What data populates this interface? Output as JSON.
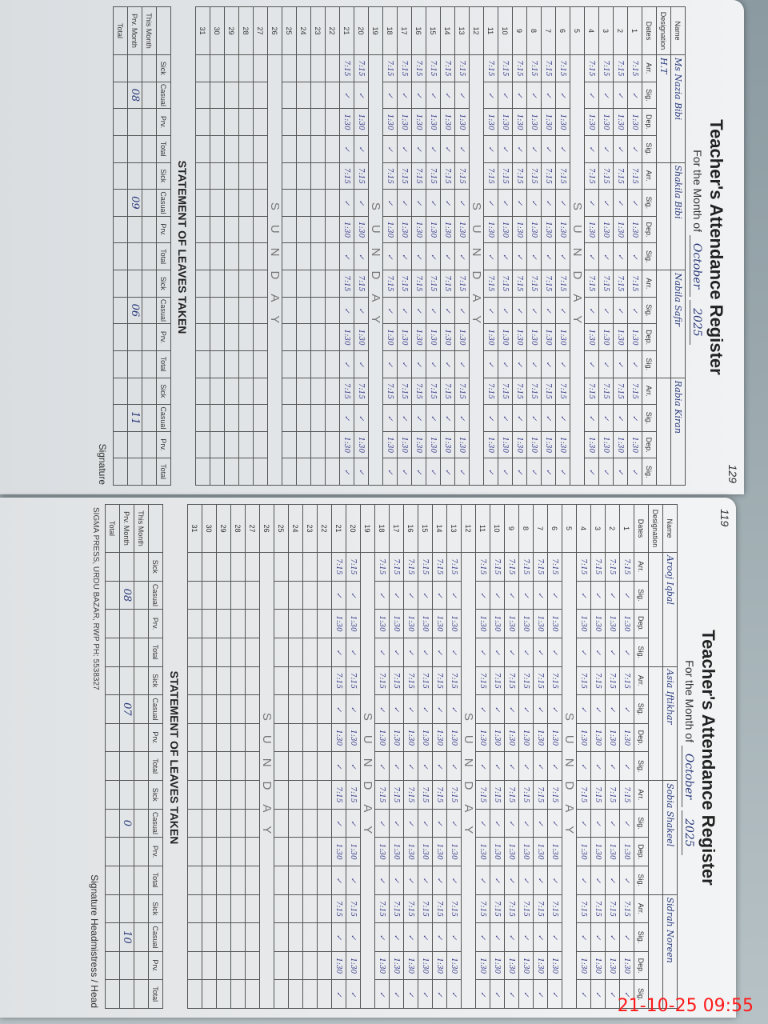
{
  "timestamp": "21-10-25  09:55",
  "pages": [
    {
      "page_number": "129",
      "title": "Teacher's Attendance Register",
      "month_label": "For the Month of",
      "month": "October",
      "year": "2025",
      "name_label": "Name",
      "designation_label": "Designation",
      "designation": "H.T",
      "teachers": [
        "Ms Nazia Bibi",
        "Shakila Bibi",
        "Nabila Safir",
        "Rabia Kiran"
      ],
      "col_headers": [
        "Arr.",
        "Sig.",
        "Dep.",
        "Sig."
      ],
      "date_label": "Dates",
      "sunday_text": "SUNDAY",
      "sundays": [
        5,
        12,
        19,
        26
      ],
      "arrival": "7:15",
      "departure": "1:30",
      "statement_title": "STATEMENT OF LEAVES TAKEN",
      "leave_cols": [
        "Sick",
        "Casual",
        "Prv.",
        "Total"
      ],
      "leave_rows": [
        "This Month",
        "Prv. Month",
        "Total"
      ],
      "leave_values": [
        "08",
        "09",
        "06",
        "11"
      ],
      "signature_label": "Signature"
    },
    {
      "page_number": "119",
      "title": "Teacher's Attendance Register",
      "month_label": "For the Month of",
      "month": "October",
      "year": "2025",
      "name_label": "Name",
      "designation_label": "Designation",
      "designation": "",
      "teachers": [
        "Arooj Iqbal",
        "Asia Iftikhar",
        "Sobia Shakeel",
        "Sidrah Noreen"
      ],
      "col_headers": [
        "Arr.",
        "Sig.",
        "Dep.",
        "Sig."
      ],
      "date_label": "Dates",
      "sunday_text": "SUNDAY",
      "sundays": [
        5,
        12,
        19,
        26
      ],
      "arrival": "7:15",
      "departure": "1:30",
      "statement_title": "STATEMENT OF LEAVES TAKEN",
      "leave_cols": [
        "Sick",
        "Casual",
        "Prv.",
        "Total"
      ],
      "leave_rows": [
        "This Month",
        "Prv. Month",
        "Total"
      ],
      "leave_values": [
        "08",
        "07",
        "0",
        "10"
      ],
      "signature_label": "Signature Headmistress / Head",
      "footer": "SIGMA PRESS, URDU BAZAR, RWP PH: 5538327"
    }
  ]
}
